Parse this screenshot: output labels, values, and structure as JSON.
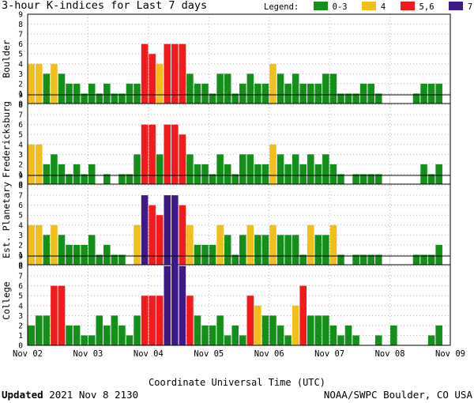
{
  "title": "3-hour K-indices for Last 7 days",
  "legend": {
    "label": "Legend:",
    "items": [
      {
        "label": "0-3",
        "color": "#138F1A"
      },
      {
        "label": "4",
        "color": "#F2BE1A"
      },
      {
        "label": "5,6",
        "color": "#F21A1A"
      },
      {
        "label": "7-9",
        "color": "#3D1A87"
      }
    ]
  },
  "colors": {
    "low": "#138F1A",
    "mid": "#F2BE1A",
    "high": "#F21A1A",
    "storm": "#3D1A87"
  },
  "x_title": "Coordinate Universal Time (UTC)",
  "updated": {
    "label": "Updated",
    "value": "2021 Nov  8 2130"
  },
  "credit": "NOAA/SWPC Boulder, CO USA",
  "chart_data": {
    "type": "bar",
    "x_ticks": [
      "Nov 02",
      "Nov 03",
      "Nov 04",
      "Nov 05",
      "Nov 06",
      "Nov 07",
      "Nov 08",
      "Nov 09"
    ],
    "y_ticks": [
      "0",
      "1",
      "2",
      "3",
      "4",
      "5",
      "6",
      "7",
      "8",
      "9"
    ],
    "ylim": [
      0,
      9
    ],
    "bins_per_day": 8,
    "xlabel": "Coordinate Universal Time (UTC)",
    "grid": true,
    "panels": [
      {
        "name": "Boulder",
        "values": [
          4,
          4,
          3,
          4,
          3,
          2,
          2,
          1,
          2,
          1,
          2,
          1,
          1,
          2,
          2,
          6,
          5,
          4,
          6,
          6,
          6,
          3,
          2,
          2,
          1,
          3,
          3,
          1,
          2,
          3,
          2,
          2,
          4,
          3,
          2,
          3,
          2,
          2,
          2,
          3,
          3,
          1,
          1,
          1,
          2,
          2,
          1,
          0,
          0,
          0,
          0,
          1,
          2,
          2,
          2,
          0
        ]
      },
      {
        "name": "Fredericksburg",
        "values": [
          4,
          4,
          2,
          3,
          2,
          1,
          2,
          1,
          2,
          0,
          1,
          0,
          1,
          1,
          3,
          6,
          6,
          3,
          6,
          6,
          5,
          3,
          2,
          2,
          1,
          3,
          2,
          1,
          3,
          3,
          2,
          2,
          4,
          3,
          2,
          3,
          2,
          3,
          2,
          3,
          2,
          1,
          0,
          1,
          1,
          1,
          1,
          0,
          0,
          0,
          0,
          0,
          2,
          1,
          2,
          0
        ]
      },
      {
        "name": "Est. Planetary",
        "values": [
          4,
          4,
          3,
          4,
          3,
          2,
          2,
          2,
          3,
          1,
          2,
          1,
          1,
          0,
          4,
          7,
          6,
          5,
          7,
          7,
          6,
          4,
          2,
          2,
          2,
          4,
          3,
          1,
          3,
          4,
          3,
          3,
          4,
          3,
          3,
          3,
          1,
          4,
          3,
          3,
          4,
          1,
          0,
          1,
          1,
          1,
          1,
          0,
          0,
          0,
          0,
          1,
          1,
          1,
          2,
          0
        ]
      },
      {
        "name": "College",
        "values": [
          2,
          3,
          3,
          6,
          6,
          2,
          2,
          1,
          1,
          3,
          2,
          3,
          2,
          1,
          3,
          5,
          5,
          5,
          8,
          9,
          8,
          5,
          3,
          2,
          2,
          3,
          1,
          2,
          1,
          5,
          4,
          3,
          3,
          2,
          1,
          4,
          6,
          3,
          3,
          3,
          2,
          1,
          2,
          1,
          0,
          0,
          1,
          0,
          2,
          0,
          0,
          0,
          0,
          1,
          2,
          0
        ]
      }
    ]
  }
}
